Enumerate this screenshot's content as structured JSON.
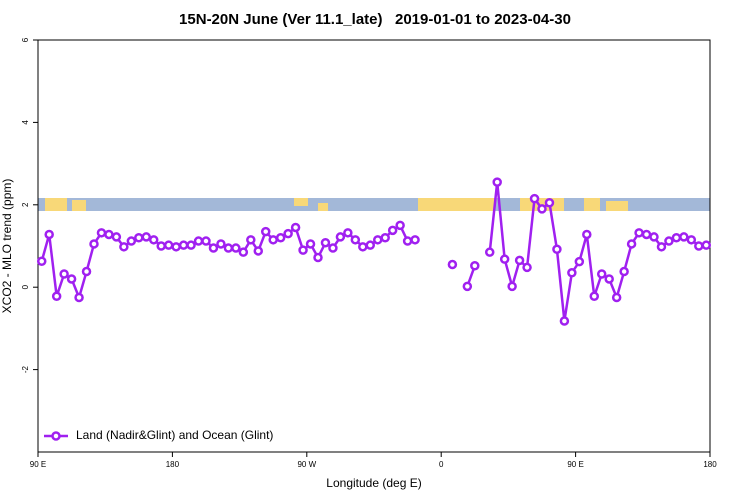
{
  "chart_data": {
    "type": "line",
    "title": "15N-20N June (Ver 11.1_late)   2019-01-01 to 2023-04-30",
    "xlabel": "Longitude (deg E)",
    "ylabel": "XCO2 - MLO trend (ppm)",
    "xlim": [
      90,
      540
    ],
    "xticks": [
      {
        "value": 90,
        "label": "90 E"
      },
      180,
      {
        "value": 270,
        "label": "90 W"
      },
      {
        "value": 360,
        "label": "0"
      },
      {
        "value": 450,
        "label": "90 E"
      },
      {
        "value": 540,
        "label": "180"
      }
    ],
    "ylim": [
      -4,
      6
    ],
    "yticks": [
      -2,
      0,
      2,
      4,
      6
    ],
    "legend": "bottom-left",
    "x": [
      92.5,
      97.5,
      102.5,
      107.5,
      112.5,
      117.5,
      122.5,
      127.5,
      132.5,
      137.5,
      142.5,
      147.5,
      152.5,
      157.5,
      162.5,
      167.5,
      172.5,
      177.5,
      182.5,
      187.5,
      192.5,
      197.5,
      202.5,
      207.5,
      212.5,
      217.5,
      222.5,
      227.5,
      232.5,
      237.5,
      242.5,
      247.5,
      252.5,
      257.5,
      262.5,
      267.5,
      272.5,
      277.5,
      282.5,
      287.5,
      292.5,
      297.5,
      302.5,
      307.5,
      312.5,
      317.5,
      322.5,
      327.5,
      332.5,
      337.5,
      342.5,
      347.5,
      352.5,
      357.5,
      362.5,
      367.5,
      372.5,
      377.5,
      382.5,
      387.5,
      392.5,
      397.5,
      402.5,
      407.5,
      412.5,
      417.5,
      422.5,
      427.5,
      432.5,
      437.5,
      442.5,
      447.5,
      452.5,
      457.5,
      462.5,
      467.5,
      472.5,
      477.5,
      482.5,
      487.5,
      492.5,
      497.5,
      502.5,
      507.5,
      512.5,
      517.5,
      522.5,
      527.5,
      532.5,
      537.5
    ],
    "series": [
      {
        "name": "Land (Nadir&Glint) and Ocean (Glint)",
        "color": "#a020f0",
        "values": [
          0.63,
          1.28,
          -0.22,
          0.32,
          0.2,
          -0.25,
          0.38,
          1.05,
          1.32,
          1.28,
          1.22,
          0.98,
          1.12,
          1.2,
          1.22,
          1.15,
          1.0,
          1.02,
          0.98,
          1.02,
          1.02,
          1.12,
          1.12,
          0.95,
          1.05,
          0.95,
          0.95,
          0.85,
          1.15,
          0.88,
          1.35,
          1.15,
          1.2,
          1.3,
          1.45,
          0.9,
          1.05,
          0.72,
          1.08,
          0.95,
          1.22,
          1.32,
          1.15,
          0.98,
          1.02,
          1.15,
          1.2,
          1.38,
          1.5,
          1.12,
          1.15,
          null,
          null,
          null,
          null,
          0.55,
          null,
          0.02,
          0.52,
          null,
          0.85,
          2.55,
          0.68,
          0.02,
          0.65,
          0.48,
          2.15,
          1.9,
          2.05,
          0.92,
          -0.82,
          0.35,
          0.62,
          1.28,
          -0.22,
          0.32,
          0.2,
          -0.25,
          0.38,
          1.05,
          1.32,
          1.28,
          1.22,
          0.98,
          1.12,
          1.2,
          1.22,
          1.15,
          1.0,
          1.02
        ]
      }
    ]
  }
}
